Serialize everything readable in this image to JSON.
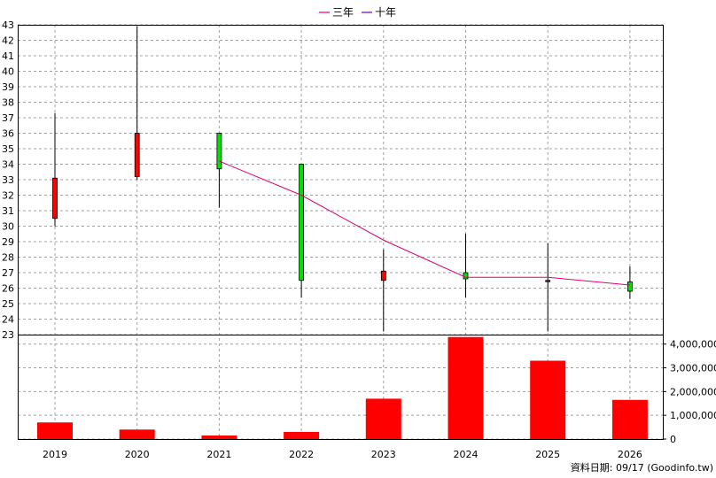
{
  "chart_data": {
    "type": "candlestick",
    "x": [
      "2019",
      "2020",
      "2021",
      "2022",
      "2023",
      "2024",
      "2025",
      "2026"
    ],
    "legend": {
      "placement": "top-center",
      "items": [
        {
          "label": "三年",
          "color": "#e0006e"
        },
        {
          "label": "十年",
          "color": "#6a00c8"
        }
      ]
    },
    "price_axis": {
      "ylim": [
        23,
        43
      ],
      "ticks": [
        "43",
        "42",
        "41",
        "40",
        "39",
        "38",
        "37",
        "36",
        "35",
        "34",
        "33",
        "32",
        "31",
        "30",
        "29",
        "28",
        "27",
        "26",
        "25",
        "24",
        "23"
      ]
    },
    "candles": [
      {
        "year": "2019",
        "open": 30.5,
        "high": 37.3,
        "low": 30.0,
        "close": 33.1,
        "color": "#ff0000"
      },
      {
        "year": "2020",
        "open": 33.2,
        "high": 42.9,
        "low": 33.0,
        "close": 36.0,
        "color": "#ff0000"
      },
      {
        "year": "2021",
        "open": 36.0,
        "high": 36.0,
        "low": 31.2,
        "close": 33.7,
        "color": "#00e000"
      },
      {
        "year": "2022",
        "open": 34.0,
        "high": 34.0,
        "low": 25.4,
        "close": 26.5,
        "color": "#00e000"
      },
      {
        "year": "2023",
        "open": 26.5,
        "high": 28.5,
        "low": 23.2,
        "close": 27.1,
        "color": "#ff0000"
      },
      {
        "year": "2024",
        "open": 27.0,
        "high": 29.5,
        "low": 25.4,
        "close": 26.6,
        "color": "#00e000"
      },
      {
        "year": "2025",
        "open": 26.5,
        "high": 28.9,
        "low": 23.2,
        "close": 26.5,
        "color": "#ff0000"
      },
      {
        "year": "2026",
        "open": 26.4,
        "high": 27.4,
        "low": 25.3,
        "close": 25.8,
        "color": "#00e000"
      }
    ],
    "three_year_line": {
      "name": "三年",
      "color": "#e0006e",
      "points": [
        {
          "year": "2021",
          "value": 34.2
        },
        {
          "year": "2022",
          "value": 32.0
        },
        {
          "year": "2023",
          "value": 29.1
        },
        {
          "year": "2024",
          "value": 26.7
        },
        {
          "year": "2025",
          "value": 26.7
        },
        {
          "year": "2026",
          "value": 26.2
        }
      ]
    },
    "volume": {
      "ylim": [
        0,
        4400000
      ],
      "ticks": [
        "4,000,000",
        "3,000,000",
        "2,000,000",
        "1,000,000",
        "0"
      ],
      "tick_values": [
        4000000,
        3000000,
        2000000,
        1000000,
        0
      ],
      "values": [
        700000,
        400000,
        150000,
        300000,
        1700000,
        4300000,
        3300000,
        1650000
      ],
      "color": "#ff0000"
    },
    "grid": true,
    "footer": "資料日期: 09/17  (Goodinfo.tw)"
  }
}
